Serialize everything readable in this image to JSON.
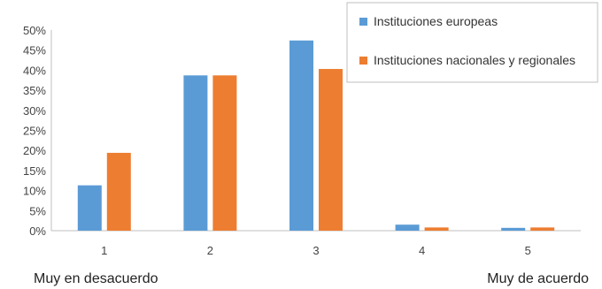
{
  "chart_data": {
    "type": "bar",
    "categories": [
      "1",
      "2",
      "3",
      "4",
      "5"
    ],
    "series": [
      {
        "name": "Instituciones europeas",
        "color": "#5B9BD5",
        "values": [
          11.3,
          38.7,
          47.4,
          1.5,
          0.7
        ]
      },
      {
        "name": "Instituciones nacionales y regionales",
        "color": "#ED7D31",
        "values": [
          19.4,
          38.7,
          40.3,
          0.8,
          0.8
        ]
      }
    ],
    "ylim": [
      0,
      50
    ],
    "yticks": [
      0,
      5,
      10,
      15,
      20,
      25,
      30,
      35,
      40,
      45,
      50
    ],
    "ytick_suffix": "%",
    "grid": false,
    "legend_position": "top-right",
    "x_end_labels": {
      "left": "Muy en desacuerdo",
      "right": "Muy de acuerdo"
    }
  }
}
